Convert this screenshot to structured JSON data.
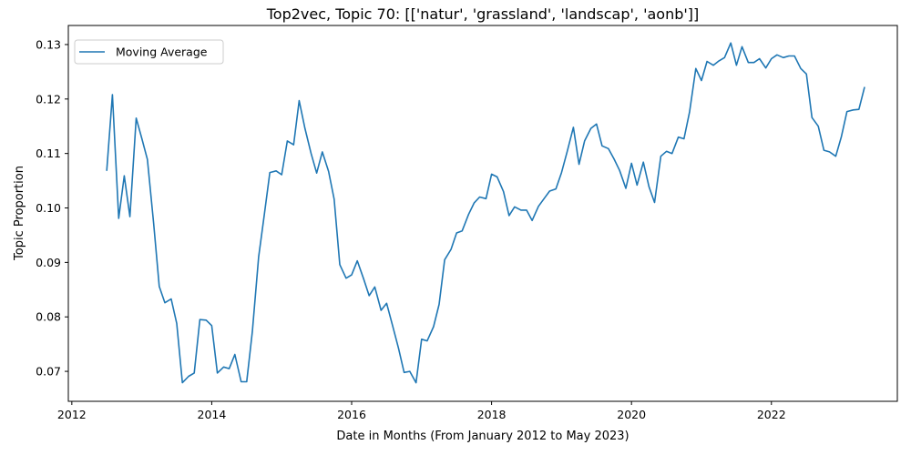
{
  "chart_data": {
    "type": "line",
    "title": "Top2vec, Topic 70: [['natur', 'grassland', 'landscap', 'aonb']]",
    "xlabel": "Date in Months (From January 2012 to May 2023)",
    "ylabel": "Topic Proportion",
    "xlim": [
      2011.95,
      2023.8
    ],
    "ylim": [
      0.0645,
      0.1335
    ],
    "x_ticks": [
      2012,
      2014,
      2016,
      2018,
      2020,
      2022
    ],
    "x_tick_labels": [
      "2012",
      "2014",
      "2016",
      "2018",
      "2020",
      "2022"
    ],
    "y_ticks": [
      0.07,
      0.08,
      0.09,
      0.1,
      0.11,
      0.12,
      0.13
    ],
    "y_tick_labels": [
      "0.07",
      "0.08",
      "0.09",
      "0.10",
      "0.11",
      "0.12",
      "0.13"
    ],
    "grid": false,
    "legend": {
      "position": "top-left",
      "entries": [
        "Moving Average"
      ]
    },
    "series": [
      {
        "name": "Moving Average",
        "color": "#1f77b4",
        "x": [
          2012.5,
          2012.58,
          2012.67,
          2012.75,
          2012.83,
          2012.92,
          2013.0,
          2013.08,
          2013.17,
          2013.25,
          2013.33,
          2013.42,
          2013.5,
          2013.58,
          2013.67,
          2013.75,
          2013.83,
          2013.92,
          2014.0,
          2014.08,
          2014.17,
          2014.25,
          2014.33,
          2014.42,
          2014.5,
          2014.58,
          2014.67,
          2014.75,
          2014.83,
          2014.92,
          2015.0,
          2015.08,
          2015.17,
          2015.25,
          2015.33,
          2015.42,
          2015.5,
          2015.58,
          2015.67,
          2015.75,
          2015.83,
          2015.92,
          2016.0,
          2016.08,
          2016.17,
          2016.25,
          2016.33,
          2016.42,
          2016.5,
          2016.58,
          2016.67,
          2016.75,
          2016.83,
          2016.92,
          2017.0,
          2017.08,
          2017.17,
          2017.25,
          2017.33,
          2017.42,
          2017.5,
          2017.58,
          2017.67,
          2017.75,
          2017.83,
          2017.92,
          2018.0,
          2018.08,
          2018.17,
          2018.25,
          2018.33,
          2018.42,
          2018.5,
          2018.58,
          2018.67,
          2018.75,
          2018.83,
          2018.92,
          2019.0,
          2019.08,
          2019.17,
          2019.25,
          2019.33,
          2019.42,
          2019.5,
          2019.58,
          2019.67,
          2019.75,
          2019.83,
          2019.92,
          2020.0,
          2020.08,
          2020.17,
          2020.25,
          2020.33,
          2020.42,
          2020.5,
          2020.58,
          2020.67,
          2020.75,
          2020.83,
          2020.92,
          2021.0,
          2021.08,
          2021.17,
          2021.25,
          2021.33,
          2021.42,
          2021.5,
          2021.58,
          2021.67,
          2021.75,
          2021.83,
          2021.92,
          2022.0,
          2022.08,
          2022.17,
          2022.25,
          2022.33,
          2022.42,
          2022.5,
          2022.58,
          2022.67,
          2022.75,
          2022.83,
          2022.92,
          2023.0,
          2023.08,
          2023.17,
          2023.25,
          2023.33
        ],
        "values": [
          0.1069,
          0.1208,
          0.0981,
          0.1059,
          0.0984,
          0.1165,
          0.1128,
          0.1089,
          0.0971,
          0.0856,
          0.0826,
          0.0833,
          0.0788,
          0.0679,
          0.0691,
          0.0697,
          0.0795,
          0.0794,
          0.0784,
          0.0697,
          0.0708,
          0.0705,
          0.0731,
          0.0681,
          0.0681,
          0.0773,
          0.091,
          0.0986,
          0.1065,
          0.1068,
          0.1061,
          0.1123,
          0.1116,
          0.1197,
          0.1147,
          0.11,
          0.1064,
          0.1103,
          0.1067,
          0.1016,
          0.0896,
          0.0871,
          0.0877,
          0.0903,
          0.087,
          0.0839,
          0.0855,
          0.0812,
          0.0825,
          0.0786,
          0.0742,
          0.0698,
          0.07,
          0.0679,
          0.0759,
          0.0756,
          0.0782,
          0.0823,
          0.0905,
          0.0924,
          0.0954,
          0.0958,
          0.0988,
          0.1009,
          0.102,
          0.1017,
          0.1062,
          0.1057,
          0.103,
          0.0986,
          0.1002,
          0.0996,
          0.0996,
          0.0977,
          0.1003,
          0.1017,
          0.1031,
          0.1035,
          0.1065,
          0.1103,
          0.1148,
          0.108,
          0.1123,
          0.1146,
          0.1154,
          0.1114,
          0.1109,
          0.109,
          0.1069,
          0.1036,
          0.1082,
          0.1042,
          0.1084,
          0.1039,
          0.101,
          0.1095,
          0.1104,
          0.11,
          0.113,
          0.1127,
          0.1176,
          0.1256,
          0.1234,
          0.1269,
          0.1262,
          0.127,
          0.1276,
          0.1303,
          0.1262,
          0.1296,
          0.1267,
          0.1267,
          0.1274,
          0.1257,
          0.1274,
          0.1281,
          0.1276,
          0.1279,
          0.1279,
          0.1256,
          0.1246,
          0.1166,
          0.115,
          0.1106,
          0.1103,
          0.1095,
          0.1131,
          0.1177,
          0.118,
          0.1181,
          0.1221
        ]
      }
    ]
  }
}
